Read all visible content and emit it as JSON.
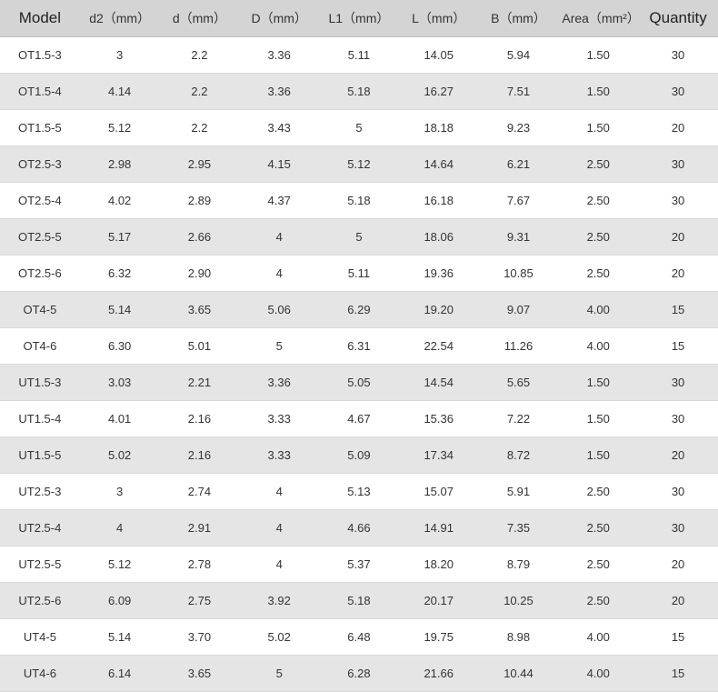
{
  "table": {
    "columns": [
      {
        "label": "Model",
        "big": true
      },
      {
        "label": "d2（mm）",
        "big": false
      },
      {
        "label": "d（mm）",
        "big": false
      },
      {
        "label": "D（mm）",
        "big": false
      },
      {
        "label": "L1（mm）",
        "big": false
      },
      {
        "label": "L（mm）",
        "big": false
      },
      {
        "label": "B（mm）",
        "big": false
      },
      {
        "label": "Area（mm²）",
        "big": false
      },
      {
        "label": "Quantity",
        "big": true
      }
    ],
    "rows": [
      [
        "OT1.5-3",
        "3",
        "2.2",
        "3.36",
        "5.11",
        "14.05",
        "5.94",
        "1.50",
        "30"
      ],
      [
        "OT1.5-4",
        "4.14",
        "2.2",
        "3.36",
        "5.18",
        "16.27",
        "7.51",
        "1.50",
        "30"
      ],
      [
        "OT1.5-5",
        "5.12",
        "2.2",
        "3.43",
        "5",
        "18.18",
        "9.23",
        "1.50",
        "20"
      ],
      [
        "OT2.5-3",
        "2.98",
        "2.95",
        "4.15",
        "5.12",
        "14.64",
        "6.21",
        "2.50",
        "30"
      ],
      [
        "OT2.5-4",
        "4.02",
        "2.89",
        "4.37",
        "5.18",
        "16.18",
        "7.67",
        "2.50",
        "30"
      ],
      [
        "OT2.5-5",
        "5.17",
        "2.66",
        "4",
        "5",
        "18.06",
        "9.31",
        "2.50",
        "20"
      ],
      [
        "OT2.5-6",
        "6.32",
        "2.90",
        "4",
        "5.11",
        "19.36",
        "10.85",
        "2.50",
        "20"
      ],
      [
        "OT4-5",
        "5.14",
        "3.65",
        "5.06",
        "6.29",
        "19.20",
        "9.07",
        "4.00",
        "15"
      ],
      [
        "OT4-6",
        "6.30",
        "5.01",
        "5",
        "6.31",
        "22.54",
        "11.26",
        "4.00",
        "15"
      ],
      [
        "UT1.5-3",
        "3.03",
        "2.21",
        "3.36",
        "5.05",
        "14.54",
        "5.65",
        "1.50",
        "30"
      ],
      [
        "UT1.5-4",
        "4.01",
        "2.16",
        "3.33",
        "4.67",
        "15.36",
        "7.22",
        "1.50",
        "30"
      ],
      [
        "UT1.5-5",
        "5.02",
        "2.16",
        "3.33",
        "5.09",
        "17.34",
        "8.72",
        "1.50",
        "20"
      ],
      [
        "UT2.5-3",
        "3",
        "2.74",
        "4",
        "5.13",
        "15.07",
        "5.91",
        "2.50",
        "30"
      ],
      [
        "UT2.5-4",
        "4",
        "2.91",
        "4",
        "4.66",
        "14.91",
        "7.35",
        "2.50",
        "30"
      ],
      [
        "UT2.5-5",
        "5.12",
        "2.78",
        "4",
        "5.37",
        "18.20",
        "8.79",
        "2.50",
        "20"
      ],
      [
        "UT2.5-6",
        "6.09",
        "2.75",
        "3.92",
        "5.18",
        "20.17",
        "10.25",
        "2.50",
        "20"
      ],
      [
        "UT4-5",
        "5.14",
        "3.70",
        "5.02",
        "6.48",
        "19.75",
        "8.98",
        "4.00",
        "15"
      ],
      [
        "UT4-6",
        "6.14",
        "3.65",
        "5",
        "6.28",
        "21.66",
        "10.44",
        "4.00",
        "15"
      ]
    ],
    "header_bg": "#d4d4d4",
    "row_even_bg": "#e5e5e5",
    "row_odd_bg": "#ffffff",
    "border_color": "#d9d9d9",
    "text_color": "#333333"
  }
}
